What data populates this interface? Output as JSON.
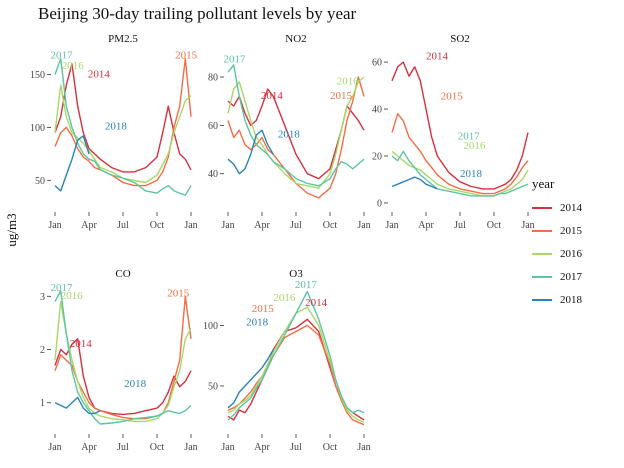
{
  "title": "Beijing 30-day trailing pollutant levels by year",
  "ylabel": "ug/m3",
  "legend": {
    "title": "year",
    "position": "right",
    "entries": [
      {
        "label": "2014",
        "color": "#d5303e"
      },
      {
        "label": "2015",
        "color": "#f46d43"
      },
      {
        "label": "2016",
        "color": "#a6d96a"
      },
      {
        "label": "2017",
        "color": "#5ec4a0"
      },
      {
        "label": "2018",
        "color": "#2b83ba"
      }
    ]
  },
  "chart_data": [
    {
      "type": "line",
      "title": "PM2.5",
      "x_ticks": [
        "Jan",
        "Apr",
        "Jul",
        "Oct",
        "Jan"
      ],
      "y_ticks": [
        50,
        100,
        150
      ],
      "ylim": [
        22,
        175
      ],
      "grid": false,
      "annotations": [
        "2017",
        "2016",
        "2014",
        "2018",
        "2015"
      ],
      "x_months": [
        0,
        0.5,
        1,
        1.5,
        2,
        2.5,
        3,
        3.5,
        4,
        5,
        6,
        7,
        8,
        9,
        9.5,
        10,
        10.5,
        11,
        11.5,
        12
      ],
      "series": [
        {
          "name": "2014",
          "values": [
            95,
            110,
            140,
            160,
            120,
            95,
            80,
            75,
            70,
            62,
            58,
            58,
            62,
            72,
            95,
            120,
            95,
            75,
            70,
            60
          ]
        },
        {
          "name": "2015",
          "values": [
            82,
            95,
            100,
            92,
            80,
            72,
            68,
            62,
            60,
            55,
            48,
            45,
            45,
            50,
            58,
            72,
            100,
            120,
            165,
            110
          ]
        },
        {
          "name": "2016",
          "values": [
            95,
            140,
            110,
            95,
            90,
            85,
            78,
            70,
            62,
            58,
            52,
            50,
            48,
            55,
            65,
            75,
            95,
            110,
            125,
            130
          ]
        },
        {
          "name": "2017",
          "values": [
            150,
            165,
            120,
            100,
            85,
            75,
            70,
            68,
            60,
            55,
            52,
            48,
            40,
            38,
            42,
            45,
            40,
            38,
            36,
            45
          ]
        },
        {
          "name": "2018",
          "values": [
            45,
            40,
            55,
            70,
            88,
            92,
            75,
            null,
            null,
            null,
            null,
            null,
            null,
            null,
            null,
            null,
            null,
            null,
            null,
            null
          ]
        }
      ]
    },
    {
      "type": "line",
      "title": "NO2",
      "x_ticks": [
        "Jan",
        "Apr",
        "Jul",
        "Oct",
        "Jan"
      ],
      "y_ticks": [
        40,
        60,
        80
      ],
      "ylim": [
        25,
        92
      ],
      "grid": false,
      "annotations": [
        "2017",
        "2014",
        "2018",
        "2016",
        "2015"
      ],
      "x_months": [
        0,
        0.5,
        1,
        1.5,
        2,
        2.5,
        3,
        3.5,
        4,
        5,
        6,
        7,
        8,
        9,
        9.5,
        10,
        10.5,
        11,
        11.5,
        12
      ],
      "series": [
        {
          "name": "2014",
          "values": [
            70,
            68,
            72,
            65,
            60,
            62,
            68,
            75,
            72,
            60,
            48,
            40,
            38,
            42,
            50,
            58,
            68,
            65,
            62,
            58
          ]
        },
        {
          "name": "2015",
          "values": [
            62,
            55,
            58,
            52,
            50,
            52,
            55,
            50,
            48,
            42,
            36,
            32,
            30,
            34,
            40,
            50,
            62,
            70,
            80,
            72
          ]
        },
        {
          "name": "2016",
          "values": [
            65,
            75,
            78,
            70,
            62,
            55,
            52,
            48,
            45,
            40,
            36,
            35,
            34,
            40,
            48,
            58,
            68,
            72,
            78,
            80
          ]
        },
        {
          "name": "2017",
          "values": [
            82,
            85,
            72,
            62,
            56,
            52,
            50,
            48,
            45,
            42,
            38,
            36,
            35,
            38,
            42,
            45,
            44,
            42,
            44,
            46
          ]
        },
        {
          "name": "2018",
          "values": [
            46,
            44,
            40,
            42,
            48,
            56,
            58,
            52,
            48,
            null,
            null,
            null,
            null,
            null,
            null,
            null,
            null,
            null,
            null,
            null
          ]
        }
      ]
    },
    {
      "type": "line",
      "title": "SO2",
      "x_ticks": [
        "Jan",
        "Apr",
        "Jul",
        "Oct",
        "Jan"
      ],
      "y_ticks": [
        0,
        20,
        40,
        60
      ],
      "ylim": [
        -3,
        66
      ],
      "grid": false,
      "annotations": [
        "2014",
        "2015",
        "2017",
        "2016",
        "2018"
      ],
      "x_months": [
        0,
        0.5,
        1,
        1.5,
        2,
        2.5,
        3,
        3.5,
        4,
        5,
        6,
        7,
        8,
        9,
        9.5,
        10,
        10.5,
        11,
        11.5,
        12
      ],
      "series": [
        {
          "name": "2014",
          "values": [
            52,
            58,
            60,
            54,
            58,
            52,
            40,
            28,
            20,
            13,
            9,
            7,
            6,
            6,
            7,
            8,
            10,
            14,
            20,
            30
          ]
        },
        {
          "name": "2015",
          "values": [
            30,
            38,
            35,
            28,
            25,
            22,
            18,
            15,
            12,
            8,
            6,
            5,
            4,
            4,
            5,
            6,
            8,
            11,
            15,
            18
          ]
        },
        {
          "name": "2016",
          "values": [
            22,
            20,
            18,
            16,
            15,
            14,
            12,
            10,
            8,
            6,
            5,
            4,
            3,
            3,
            4,
            5,
            6,
            8,
            10,
            14
          ]
        },
        {
          "name": "2017",
          "values": [
            20,
            18,
            22,
            18,
            15,
            12,
            10,
            8,
            6,
            5,
            4,
            3,
            3,
            3,
            4,
            4,
            5,
            6,
            7,
            8
          ]
        },
        {
          "name": "2018",
          "values": [
            7,
            8,
            9,
            10,
            11,
            10,
            8,
            7,
            6,
            null,
            null,
            null,
            null,
            null,
            null,
            null,
            null,
            null,
            null,
            null
          ]
        }
      ]
    },
    {
      "type": "line",
      "title": "CO",
      "x_ticks": [
        "Jan",
        "Apr",
        "Jul",
        "Oct",
        "Jan"
      ],
      "y_ticks": [
        1,
        2,
        3
      ],
      "ylim": [
        0.45,
        3.25
      ],
      "grid": false,
      "annotations": [
        "2017",
        "2016",
        "2014",
        "2018",
        "2015"
      ],
      "x_months": [
        0,
        0.5,
        1,
        1.5,
        2,
        2.5,
        3,
        3.5,
        4,
        5,
        6,
        7,
        8,
        9,
        9.5,
        10,
        10.5,
        11,
        11.5,
        12
      ],
      "series": [
        {
          "name": "2014",
          "values": [
            1.7,
            2.0,
            1.9,
            2.1,
            2.2,
            1.5,
            1.1,
            0.9,
            0.85,
            0.8,
            0.78,
            0.8,
            0.85,
            0.9,
            1.0,
            1.2,
            1.5,
            1.3,
            1.4,
            1.6
          ]
        },
        {
          "name": "2015",
          "values": [
            1.6,
            1.9,
            1.8,
            1.7,
            1.4,
            1.2,
            1.0,
            0.9,
            0.85,
            0.78,
            0.72,
            0.7,
            0.7,
            0.75,
            0.8,
            1.0,
            1.4,
            1.8,
            3.0,
            2.2
          ]
        },
        {
          "name": "2016",
          "values": [
            1.8,
            2.9,
            2.3,
            1.8,
            1.4,
            1.1,
            0.9,
            0.8,
            0.75,
            0.7,
            0.68,
            0.65,
            0.65,
            0.7,
            0.8,
            0.95,
            1.3,
            1.6,
            2.2,
            2.4
          ]
        },
        {
          "name": "2017",
          "values": [
            2.9,
            3.1,
            2.3,
            1.6,
            1.2,
            1.0,
            0.85,
            0.7,
            0.6,
            0.62,
            0.65,
            0.7,
            0.72,
            0.75,
            0.8,
            0.85,
            0.82,
            0.8,
            0.85,
            0.95
          ]
        },
        {
          "name": "2018",
          "values": [
            1.0,
            0.95,
            0.9,
            1.0,
            1.1,
            0.9,
            0.8,
            0.8,
            0.85,
            null,
            null,
            null,
            null,
            null,
            null,
            null,
            null,
            null,
            null,
            null
          ]
        }
      ]
    },
    {
      "type": "line",
      "title": "O3",
      "x_ticks": [
        "Jan",
        "Apr",
        "Jul",
        "Oct",
        "Jan"
      ],
      "y_ticks": [
        50,
        100
      ],
      "ylim": [
        12,
        135
      ],
      "grid": false,
      "annotations": [
        "2017",
        "2016",
        "2015",
        "2014",
        "2018"
      ],
      "x_months": [
        0,
        0.5,
        1,
        1.5,
        2,
        2.5,
        3,
        3.5,
        4,
        5,
        6,
        7,
        8,
        9,
        9.5,
        10,
        10.5,
        11,
        11.5,
        12
      ],
      "series": [
        {
          "name": "2014",
          "values": [
            25,
            22,
            30,
            28,
            35,
            45,
            55,
            65,
            80,
            95,
            98,
            105,
            95,
            65,
            50,
            40,
            32,
            28,
            25,
            22
          ]
        },
        {
          "name": "2015",
          "values": [
            30,
            32,
            35,
            40,
            45,
            52,
            58,
            65,
            75,
            90,
            95,
            100,
            92,
            68,
            50,
            38,
            28,
            22,
            20,
            18
          ]
        },
        {
          "name": "2016",
          "values": [
            28,
            30,
            35,
            38,
            42,
            50,
            58,
            68,
            78,
            95,
            110,
            115,
            100,
            70,
            55,
            40,
            30,
            25,
            22,
            20
          ]
        },
        {
          "name": "2017",
          "values": [
            22,
            26,
            32,
            36,
            40,
            48,
            55,
            65,
            75,
            92,
            110,
            128,
            105,
            75,
            55,
            42,
            32,
            28,
            30,
            28
          ]
        },
        {
          "name": "2018",
          "values": [
            32,
            36,
            45,
            50,
            55,
            60,
            65,
            72,
            80,
            null,
            null,
            null,
            null,
            null,
            null,
            null,
            null,
            null,
            null,
            null
          ]
        }
      ]
    }
  ]
}
